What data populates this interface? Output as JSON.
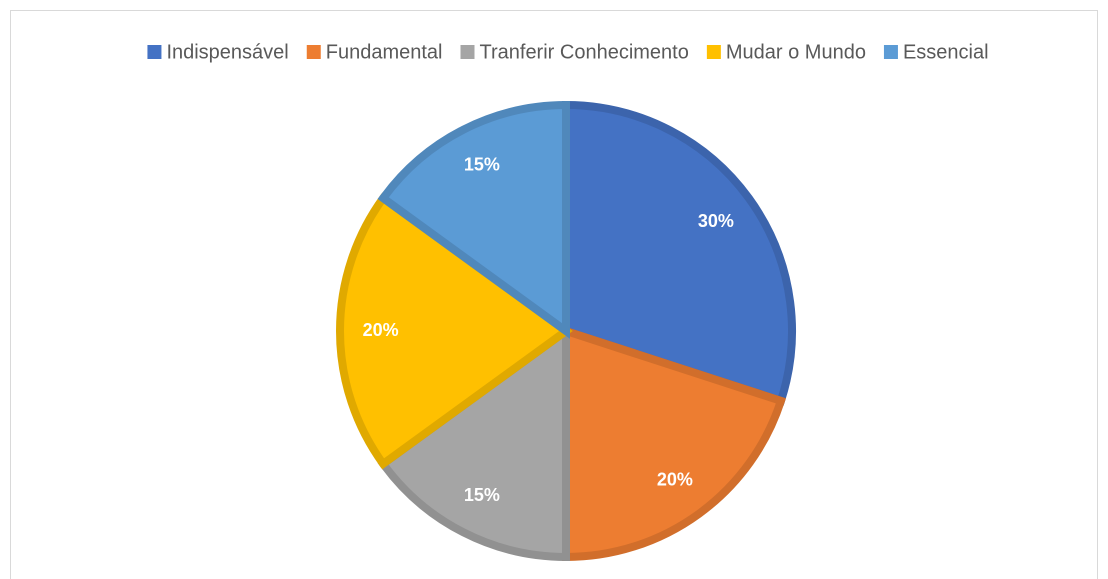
{
  "chart_data": {
    "type": "pie",
    "categories": [
      "Indispensável",
      "Fundamental",
      "Tranferir Conhecimento",
      "Mudar o Mundo",
      "Essencial"
    ],
    "values": [
      30,
      20,
      15,
      20,
      15
    ],
    "value_labels": [
      "30%",
      "20%",
      "15%",
      "20%",
      "15%"
    ],
    "colors": [
      "#4472c4",
      "#ed7d31",
      "#a5a5a5",
      "#ffc000",
      "#5b9bd5"
    ],
    "legend": "top"
  }
}
